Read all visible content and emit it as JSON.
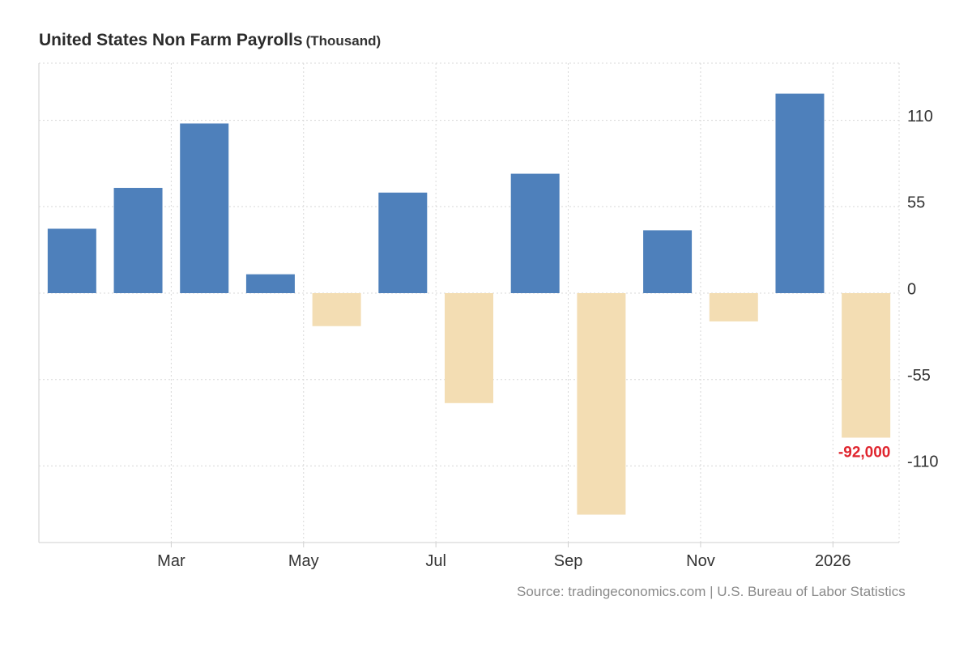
{
  "header": {
    "title": "United States Non Farm Payrolls",
    "unit": "(Thousand)"
  },
  "source": "Source: tradingeconomics.com | U.S. Bureau of Labor Statistics",
  "colors": {
    "positive": "#4e80bb",
    "negative": "#f3ddb3",
    "label": "#e0262f",
    "grid": "#d8d8d8"
  },
  "chart_data": {
    "type": "bar",
    "title": "United States Non Farm Payrolls",
    "ylabel": "",
    "xlabel": "",
    "ylim": [
      -158,
      146
    ],
    "yticks": [
      110,
      55,
      0,
      -55,
      -110
    ],
    "ytick_labels": [
      "110",
      "55",
      "0",
      "-55",
      "-110"
    ],
    "xtick_labels": [
      "Mar",
      "May",
      "Jul",
      "Sep",
      "Nov",
      "2026"
    ],
    "xtick_after_index": [
      1,
      3,
      5,
      7,
      9,
      11
    ],
    "grid": true,
    "values": [
      41,
      67,
      108,
      12,
      -21,
      64,
      -70,
      76,
      -141,
      40,
      -18,
      127,
      -92
    ],
    "annotation": {
      "index": 12,
      "text": "-92,000"
    }
  }
}
